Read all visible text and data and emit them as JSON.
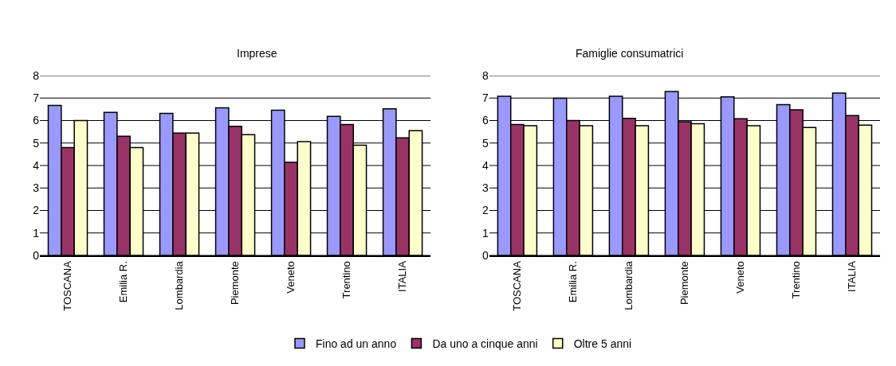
{
  "chart_data": [
    {
      "type": "bar",
      "title": "Imprese",
      "categories": [
        "TOSCANA",
        "Emilia R.",
        "Lombardia",
        "Piemonte",
        "Veneto",
        "Trentino",
        "ITALIA"
      ],
      "ylim": [
        0,
        8
      ],
      "yticks": [
        0,
        1,
        2,
        3,
        4,
        5,
        6,
        7,
        8
      ],
      "grid": "y",
      "legend": "bottom",
      "series": [
        {
          "name": "Fino ad un anno",
          "color": "#9999ff",
          "values": [
            6.67,
            6.36,
            6.32,
            6.57,
            6.46,
            6.19,
            6.52
          ]
        },
        {
          "name": "Da uno a cinque anni",
          "color": "#993366",
          "values": [
            4.8,
            5.3,
            5.44,
            5.74,
            4.14,
            5.82,
            5.23
          ]
        },
        {
          "name": "Oltre 5 anni",
          "color": "#ffffcc",
          "values": [
            6.0,
            4.8,
            5.44,
            5.37,
            5.06,
            4.9,
            5.55
          ]
        }
      ]
    },
    {
      "type": "bar",
      "title": "Famiglie consumatrici",
      "categories": [
        "TOSCANA",
        "Emilia R.",
        "Lombardia",
        "Piemonte",
        "Veneto",
        "Trentino",
        "ITALIA"
      ],
      "ylim": [
        0,
        8
      ],
      "yticks": [
        0,
        1,
        2,
        3,
        4,
        5,
        6,
        7,
        8
      ],
      "grid": "y",
      "series": [
        {
          "color": "#9999ff",
          "values": [
            7.08,
            6.99,
            7.08,
            7.29,
            7.05,
            6.71,
            7.22
          ]
        },
        {
          "color": "#993366",
          "values": [
            5.82,
            6.0,
            6.1,
            5.95,
            6.08,
            6.48,
            6.22
          ]
        },
        {
          "color": "#ffffcc",
          "values": [
            5.77,
            5.77,
            5.77,
            5.86,
            5.77,
            5.69,
            5.8
          ]
        }
      ]
    }
  ]
}
